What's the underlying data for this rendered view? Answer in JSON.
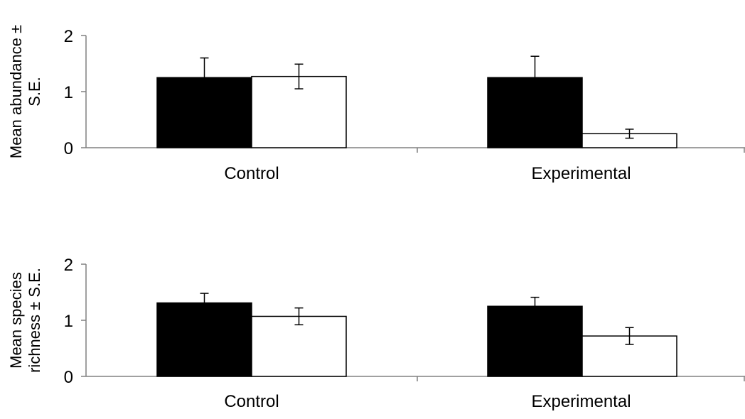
{
  "chart_data": [
    {
      "type": "bar",
      "categories": [
        "Control",
        "Experimental"
      ],
      "series": [
        {
          "values": [
            1.25,
            1.25
          ],
          "errors": [
            0.35,
            0.38
          ],
          "color": "#000000"
        },
        {
          "values": [
            1.27,
            0.25
          ],
          "errors": [
            0.22,
            0.08
          ],
          "color": "#ffffff"
        }
      ],
      "ylabel_lines": [
        "Mean abundance ±",
        "S.E."
      ],
      "yticks": [
        "0",
        "1",
        "2"
      ],
      "ylim": [
        0,
        2
      ],
      "grid": false
    },
    {
      "type": "bar",
      "categories": [
        "Control",
        "Experimental"
      ],
      "series": [
        {
          "values": [
            1.31,
            1.25
          ],
          "errors": [
            0.17,
            0.16
          ],
          "color": "#000000"
        },
        {
          "values": [
            1.07,
            0.72
          ],
          "errors": [
            0.15,
            0.15
          ],
          "color": "#ffffff"
        }
      ],
      "ylabel_lines": [
        "Mean species",
        "richness ± S.E."
      ],
      "yticks": [
        "0",
        "1",
        "2"
      ],
      "ylim": [
        0,
        2
      ],
      "grid": false
    }
  ]
}
